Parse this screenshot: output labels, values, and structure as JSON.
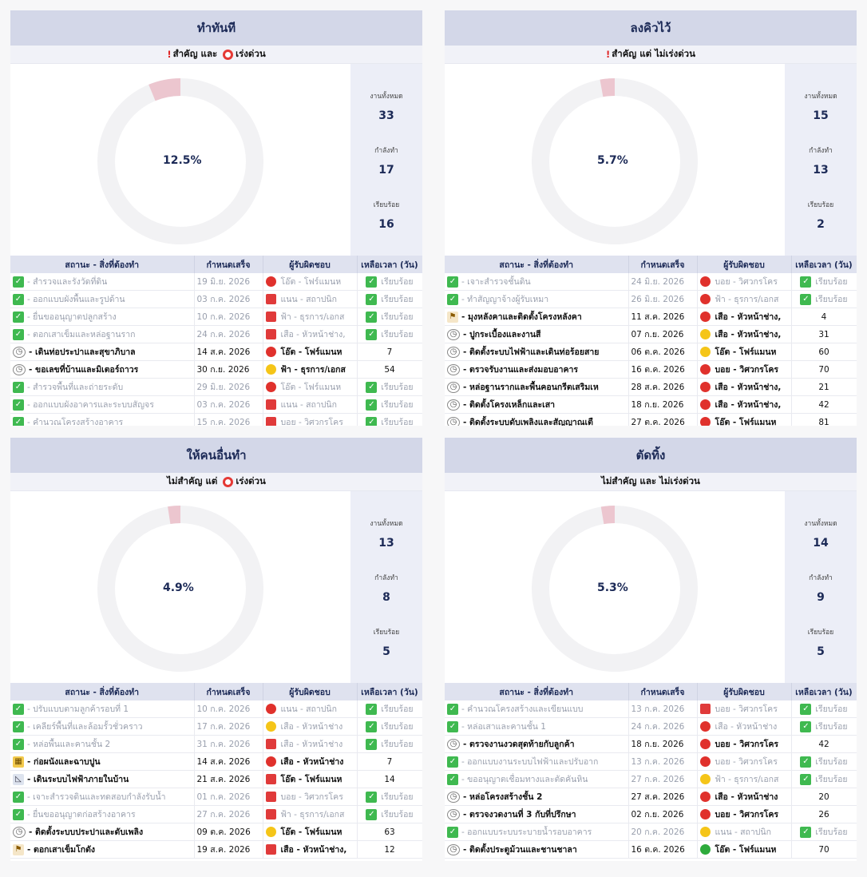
{
  "quadrants": [
    {
      "title": "ทำทันที",
      "subtitle_a": "สำคัญ",
      "subtitle_mid": "และ",
      "subtitle_b": "เร่งด่วน",
      "percent_text": "12.5%",
      "percent_value": 12.5,
      "stats": [
        {
          "label": "งานทั้งหมด",
          "value": "33"
        },
        {
          "label": "กำลังทำ",
          "value": "17"
        },
        {
          "label": "เรียบร้อย",
          "value": "16"
        }
      ],
      "headers": [
        "สถานะ - สิ่งที่ต้องทำ",
        "กำหนดเสร็จ",
        "ผู้รับผิดชอบ",
        "เหลือเวลา (วัน)"
      ],
      "rows": [
        {
          "icon": "check",
          "task": "- สำรวจและรังวัดที่ดิน",
          "date": "19 มิ.ย. 2026",
          "dot": "red",
          "owner": "โอ๊ต - โฟร์แมนห",
          "left": "เรียบร้อย",
          "done": true
        },
        {
          "icon": "check",
          "task": "- ออกแบบผังพื้นและรูปด้าน",
          "date": "03 ก.ค. 2026",
          "dot": "file",
          "owner": "แนน - สถาปนิก",
          "left": "เรียบร้อย",
          "done": true
        },
        {
          "icon": "check",
          "task": "- ยื่นขออนุญาตปลูกสร้าง",
          "date": "10 ก.ค. 2026",
          "dot": "file",
          "owner": "ฟ้า - ธุรการ/เอกส",
          "left": "เรียบร้อย",
          "done": true
        },
        {
          "icon": "check",
          "task": "- ตอกเสาเข็มและหล่อฐานราก",
          "date": "24 ก.ค. 2026",
          "dot": "file",
          "owner": "เสือ - หัวหน้าช่าง,",
          "left": "เรียบร้อย",
          "done": true
        },
        {
          "icon": "clock",
          "task": "- เดินท่อประปาและสุขาภิบาล",
          "date": "14 ส.ค. 2026",
          "dot": "red",
          "owner": "โอ๊ต - โฟร์แมนห",
          "left": "7",
          "done": false
        },
        {
          "icon": "clock",
          "task": "- ขอเลขที่บ้านและมิเตอร์ถาวร",
          "date": "30 ก.ย. 2026",
          "dot": "yellow",
          "owner": "ฟ้า - ธุรการ/เอกส",
          "left": "54",
          "done": false
        },
        {
          "icon": "check",
          "task": "- สำรวจพื้นที่และถ่ายระดับ",
          "date": "29 มิ.ย. 2026",
          "dot": "red",
          "owner": "โอ๊ต - โฟร์แมนห",
          "left": "เรียบร้อย",
          "done": true
        },
        {
          "icon": "check",
          "task": "- ออกแบบผังอาคารและระบบสัญจร",
          "date": "03 ก.ค. 2026",
          "dot": "file",
          "owner": "แนน - สถาปนิก",
          "left": "เรียบร้อย",
          "done": true
        },
        {
          "icon": "check",
          "task": "- คำนวณโครงสร้างอาคาร",
          "date": "15 ก.ค. 2026",
          "dot": "file",
          "owner": "บอย - วิศวกรโคร",
          "left": "เรียบร้อย",
          "done": true
        }
      ]
    },
    {
      "title": "ลงคิวไว้",
      "subtitle_a": "สำคัญ",
      "subtitle_mid": "แต่",
      "subtitle_b": "ไม่เร่งด่วน",
      "percent_text": "5.7%",
      "percent_value": 5.7,
      "stats": [
        {
          "label": "งานทั้งหมด",
          "value": "15"
        },
        {
          "label": "กำลังทำ",
          "value": "13"
        },
        {
          "label": "เรียบร้อย",
          "value": "2"
        }
      ],
      "headers": [
        "สถานะ - สิ่งที่ต้องทำ",
        "กำหนดเสร็จ",
        "ผู้รับผิดชอบ",
        "เหลือเวลา (วัน)"
      ],
      "rows": [
        {
          "icon": "check",
          "task": "- เจาะสำรวจชั้นดิน",
          "date": "24 มิ.ย. 2026",
          "dot": "red",
          "owner": "บอย - วิศวกรโคร",
          "left": "เรียบร้อย",
          "done": true
        },
        {
          "icon": "check",
          "task": "- ทำสัญญาจ้างผู้รับเหมา",
          "date": "26 มิ.ย. 2026",
          "dot": "red",
          "owner": "ฟ้า - ธุรการ/เอกส",
          "left": "เรียบร้อย",
          "done": true
        },
        {
          "icon": "flag",
          "task": "- มุงหลังคาและติดตั้งโครงหลังคา",
          "date": "11 ส.ค. 2026",
          "dot": "red",
          "owner": "เสือ - หัวหน้าช่าง,",
          "left": "4",
          "done": false
        },
        {
          "icon": "clock",
          "task": "- ปูกระเบื้องและงานสี",
          "date": "07 ก.ย. 2026",
          "dot": "yellow",
          "owner": "เสือ - หัวหน้าช่าง,",
          "left": "31",
          "done": false
        },
        {
          "icon": "clock",
          "task": "- ติดตั้งระบบไฟฟ้าและเดินท่อร้อยสาย",
          "date": "06 ต.ค. 2026",
          "dot": "yellow",
          "owner": "โอ๊ต - โฟร์แมนห",
          "left": "60",
          "done": false
        },
        {
          "icon": "clock",
          "task": "- ตรวจรับงานและส่งมอบอาคาร",
          "date": "16 ต.ค. 2026",
          "dot": "red",
          "owner": "บอย - วิศวกรโคร",
          "left": "70",
          "done": false
        },
        {
          "icon": "clock",
          "task": "- หล่อฐานรากและพื้นคอนกรีตเสริมเห",
          "date": "28 ส.ค. 2026",
          "dot": "red",
          "owner": "เสือ - หัวหน้าช่าง,",
          "left": "21",
          "done": false
        },
        {
          "icon": "clock",
          "task": "- ติดตั้งโครงเหล็กและเสา",
          "date": "18 ก.ย. 2026",
          "dot": "red",
          "owner": "เสือ - หัวหน้าช่าง,",
          "left": "42",
          "done": false
        },
        {
          "icon": "clock",
          "task": "- ติดตั้งระบบดับเพลิงและสัญญาณเตื",
          "date": "27 ต.ค. 2026",
          "dot": "red",
          "owner": "โอ๊ต - โฟร์แมนห",
          "left": "81",
          "done": false
        }
      ]
    },
    {
      "title": "ให้คนอื่นทำ",
      "subtitle_a": "ไม่สำคัญ",
      "subtitle_mid": "แต่",
      "subtitle_b": "เร่งด่วน",
      "percent_text": "4.9%",
      "percent_value": 4.9,
      "stats": [
        {
          "label": "งานทั้งหมด",
          "value": "13"
        },
        {
          "label": "กำลังทำ",
          "value": "8"
        },
        {
          "label": "เรียบร้อย",
          "value": "5"
        }
      ],
      "headers": [
        "สถานะ - สิ่งที่ต้องทำ",
        "กำหนดเสร็จ",
        "ผู้รับผิดชอบ",
        "เหลือเวลา (วัน)"
      ],
      "rows": [
        {
          "icon": "check",
          "task": "- ปรับแบบตามลูกค้ารอบที่ 1",
          "date": "10 ก.ค. 2026",
          "dot": "red",
          "owner": "แนน - สถาปนิก",
          "left": "เรียบร้อย",
          "done": true
        },
        {
          "icon": "check",
          "task": "- เคลียร์พื้นที่และล้อมรั้วชั่วคราว",
          "date": "17 ก.ค. 2026",
          "dot": "yellow",
          "owner": "เสือ - หัวหน้าช่าง",
          "left": "เรียบร้อย",
          "done": true
        },
        {
          "icon": "check",
          "task": "- หล่อพื้นและคานชั้น 2",
          "date": "31 ก.ค. 2026",
          "dot": "file",
          "owner": "เสือ - หัวหน้าช่าง",
          "left": "เรียบร้อย",
          "done": true
        },
        {
          "icon": "brick",
          "task": "- ก่อผนังและฉาบปูน",
          "date": "14 ส.ค. 2026",
          "dot": "red",
          "owner": "เสือ - หัวหน้าช่าง",
          "left": "7",
          "done": false
        },
        {
          "icon": "ruler",
          "task": "- เดินระบบไฟฟ้าภายในบ้าน",
          "date": "21 ส.ค. 2026",
          "dot": "file",
          "owner": "โอ๊ต - โฟร์แมนห",
          "left": "14",
          "done": false
        },
        {
          "icon": "check",
          "task": "- เจาะสำรวจดินและทดสอบกำลังรับน้ำ",
          "date": "01 ก.ค. 2026",
          "dot": "file",
          "owner": "บอย - วิศวกรโคร",
          "left": "เรียบร้อย",
          "done": true
        },
        {
          "icon": "check",
          "task": "- ยื่นขออนุญาตก่อสร้างอาคาร",
          "date": "27 ก.ค. 2026",
          "dot": "file",
          "owner": "ฟ้า - ธุรการ/เอกส",
          "left": "เรียบร้อย",
          "done": true
        },
        {
          "icon": "clock",
          "task": "- ติดตั้งระบบประปาและดับเพลิง",
          "date": "09 ต.ค. 2026",
          "dot": "yellow",
          "owner": "โอ๊ต - โฟร์แมนห",
          "left": "63",
          "done": false
        },
        {
          "icon": "flag",
          "task": "- ตอกเสาเข็มโกดัง",
          "date": "19 ส.ค. 2026",
          "dot": "file",
          "owner": "เสือ - หัวหน้าช่าง,",
          "left": "12",
          "done": false
        }
      ]
    },
    {
      "title": "ตัดทิ้ง",
      "subtitle_a": "ไม่สำคัญ",
      "subtitle_mid": "และ",
      "subtitle_b": "ไม่เร่งด่วน",
      "percent_text": "5.3%",
      "percent_value": 5.3,
      "stats": [
        {
          "label": "งานทั้งหมด",
          "value": "14"
        },
        {
          "label": "กำลังทำ",
          "value": "9"
        },
        {
          "label": "เรียบร้อย",
          "value": "5"
        }
      ],
      "headers": [
        "สถานะ - สิ่งที่ต้องทำ",
        "กำหนดเสร็จ",
        "ผู้รับผิดชอบ",
        "เหลือเวลา (วัน)"
      ],
      "rows": [
        {
          "icon": "check",
          "task": "- คำนวณโครงสร้างและเขียนแบบ",
          "date": "13 ก.ค. 2026",
          "dot": "file",
          "owner": "บอย - วิศวกรโคร",
          "left": "เรียบร้อย",
          "done": true
        },
        {
          "icon": "check",
          "task": "- หล่อเสาและคานชั้น 1",
          "date": "24 ก.ค. 2026",
          "dot": "red",
          "owner": "เสือ - หัวหน้าช่าง",
          "left": "เรียบร้อย",
          "done": true
        },
        {
          "icon": "clock",
          "task": "- ตรวจงานงวดสุดท้ายกับลูกค้า",
          "date": "18 ก.ย. 2026",
          "dot": "red",
          "owner": "บอย - วิศวกรโคร",
          "left": "42",
          "done": false
        },
        {
          "icon": "check",
          "task": "- ออกแบบงานระบบไฟฟ้าและปรับอาก",
          "date": "13 ก.ค. 2026",
          "dot": "red",
          "owner": "บอย - วิศวกรโคร",
          "left": "เรียบร้อย",
          "done": true
        },
        {
          "icon": "check",
          "task": "- ขออนุญาตเชื่อมทางและตัดคันหิน",
          "date": "27 ก.ค. 2026",
          "dot": "yellow",
          "owner": "ฟ้า - ธุรการ/เอกส",
          "left": "เรียบร้อย",
          "done": true
        },
        {
          "icon": "clock",
          "task": "- หล่อโครงสร้างชั้น 2",
          "date": "27 ส.ค. 2026",
          "dot": "red",
          "owner": "เสือ - หัวหน้าช่าง",
          "left": "20",
          "done": false
        },
        {
          "icon": "clock",
          "task": "- ตรวจงวดงานที่ 3 กับที่ปรึกษา",
          "date": "02 ก.ย. 2026",
          "dot": "red",
          "owner": "บอย - วิศวกรโคร",
          "left": "26",
          "done": false
        },
        {
          "icon": "check",
          "task": "- ออกแบบระบบระบายน้ำรอบอาคาร",
          "date": "20 ก.ค. 2026",
          "dot": "yellow",
          "owner": "แนน - สถาปนิก",
          "left": "เรียบร้อย",
          "done": true
        },
        {
          "icon": "clock",
          "task": "- ติดตั้งประตูม้วนและชานชาลา",
          "date": "16 ต.ค. 2026",
          "dot": "green",
          "owner": "โอ๊ต - โฟร์แมนห",
          "left": "70",
          "done": false
        }
      ]
    }
  ],
  "colors": {
    "donut_track": "#f2f2f4",
    "donut_fill": "#ecc6cf",
    "header_bg": "#d3d7e8",
    "check_green": "#3fb950"
  },
  "icons": {
    "check": "check-square-icon",
    "clock": "clock-icon",
    "flag": "flag-icon",
    "brick": "brick-icon",
    "ruler": "ruler-icon"
  }
}
